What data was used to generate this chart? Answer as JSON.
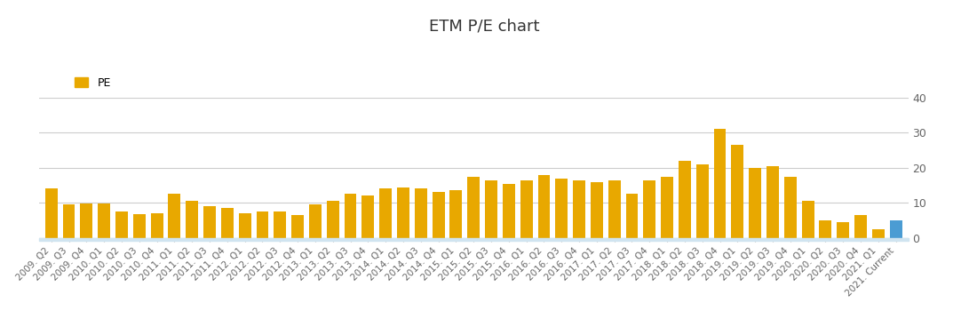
{
  "title": "ETM P/E chart",
  "bar_color": "#E8A800",
  "current_bar_color": "#4B9CD3",
  "ylim": [
    0,
    40
  ],
  "yticks": [
    0,
    10,
    20,
    30,
    40
  ],
  "background_color": "#ffffff",
  "legend_label": "PE",
  "categories": [
    "2009. Q2",
    "2009. Q3",
    "2009. Q4",
    "2010. Q1",
    "2010. Q2",
    "2010. Q3",
    "2010. Q4",
    "2011. Q1",
    "2011. Q2",
    "2011. Q3",
    "2011. Q4",
    "2012. Q1",
    "2012. Q2",
    "2012. Q3",
    "2012. Q4",
    "2013. Q1",
    "2013. Q2",
    "2013. Q3",
    "2013. Q4",
    "2014. Q1",
    "2014. Q2",
    "2014. Q3",
    "2014. Q4",
    "2015. Q1",
    "2015. Q2",
    "2015. Q3",
    "2015. Q4",
    "2016. Q1",
    "2016. Q2",
    "2016. Q3",
    "2016. Q4",
    "2017. Q1",
    "2017. Q2",
    "2017. Q3",
    "2017. Q4",
    "2018. Q1",
    "2018. Q2",
    "2018. Q3",
    "2018. Q4",
    "2019. Q1",
    "2019. Q2",
    "2019. Q3",
    "2019. Q4",
    "2020. Q1",
    "2020. Q2",
    "2020. Q3",
    "2020. Q4",
    "2021. Q1",
    "2021. Current"
  ],
  "values": [
    14.0,
    9.5,
    9.8,
    9.7,
    7.5,
    6.8,
    7.0,
    12.5,
    10.5,
    9.0,
    8.5,
    7.0,
    7.5,
    7.5,
    6.5,
    9.5,
    10.5,
    12.5,
    12.0,
    14.0,
    14.5,
    14.0,
    13.0,
    13.5,
    17.5,
    16.5,
    15.5,
    16.5,
    18.0,
    17.0,
    16.5,
    16.0,
    16.5,
    12.5,
    16.5,
    17.5,
    22.0,
    21.0,
    31.0,
    26.5,
    20.0,
    20.5,
    17.5,
    10.5,
    5.0,
    4.5,
    6.5,
    2.5,
    5.0
  ],
  "current_index": 48,
  "grid_color": "#cccccc",
  "axis_color": "#aaaaaa",
  "tick_label_color": "#666666",
  "tick_label_size": 7.5
}
